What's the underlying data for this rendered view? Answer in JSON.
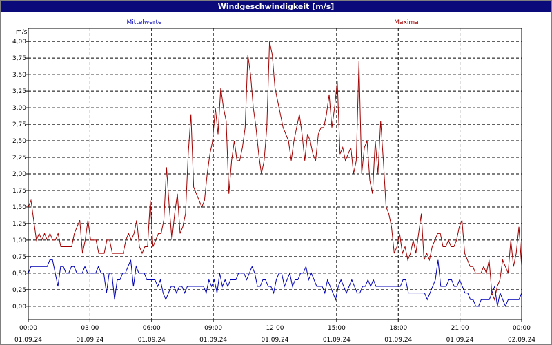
{
  "chart_data": {
    "type": "line",
    "title": "Windgeschwindigkeit [m/s]",
    "ylabel": "m/s",
    "ylim": [
      -0.2,
      4.2
    ],
    "yticks": [
      "4,00",
      "3,75",
      "3,50",
      "3,25",
      "3,00",
      "2,75",
      "2,50",
      "2,25",
      "2,00",
      "1,75",
      "1,50",
      "1,25",
      "1,00",
      "0,75",
      "0,50",
      "0,25",
      "0,00"
    ],
    "ytick_values": [
      4.0,
      3.75,
      3.5,
      3.25,
      3.0,
      2.75,
      2.5,
      2.25,
      2.0,
      1.75,
      1.5,
      1.25,
      1.0,
      0.75,
      0.5,
      0.25,
      0.0
    ],
    "xlim": [
      0,
      24
    ],
    "xticks": [
      {
        "time": "00:00",
        "date": "01.09.24"
      },
      {
        "time": "03:00",
        "date": "01.09.24"
      },
      {
        "time": "06:00",
        "date": "01.09.24"
      },
      {
        "time": "09:00",
        "date": "01.09.24"
      },
      {
        "time": "12:00",
        "date": "01.09.24"
      },
      {
        "time": "15:00",
        "date": "01.09.24"
      },
      {
        "time": "18:00",
        "date": "01.09.24"
      },
      {
        "time": "21:00",
        "date": "01.09.24"
      },
      {
        "time": "00:00",
        "date": "02.09.24"
      }
    ],
    "grid": true,
    "series": [
      {
        "name": "Mittelwerte",
        "color": "#0000b4",
        "values": [
          0.5,
          0.6,
          0.6,
          0.6,
          0.6,
          0.6,
          0.6,
          0.6,
          0.7,
          0.7,
          0.5,
          0.3,
          0.6,
          0.6,
          0.5,
          0.5,
          0.6,
          0.6,
          0.5,
          0.5,
          0.5,
          0.6,
          0.5,
          0.5,
          0.5,
          0.5,
          0.6,
          0.5,
          0.5,
          0.2,
          0.5,
          0.5,
          0.1,
          0.4,
          0.4,
          0.5,
          0.5,
          0.6,
          0.7,
          0.3,
          0.6,
          0.5,
          0.5,
          0.5,
          0.4,
          0.4,
          0.4,
          0.4,
          0.3,
          0.4,
          0.2,
          0.1,
          0.2,
          0.3,
          0.3,
          0.2,
          0.3,
          0.3,
          0.2,
          0.3,
          0.3,
          0.3,
          0.3,
          0.3,
          0.3,
          0.3,
          0.2,
          0.4,
          0.3,
          0.4,
          0.2,
          0.5,
          0.3,
          0.4,
          0.3,
          0.4,
          0.4,
          0.4,
          0.5,
          0.5,
          0.5,
          0.4,
          0.5,
          0.6,
          0.5,
          0.3,
          0.3,
          0.4,
          0.4,
          0.3,
          0.3,
          0.2,
          0.4,
          0.5,
          0.5,
          0.3,
          0.4,
          0.5,
          0.3,
          0.4,
          0.4,
          0.5,
          0.5,
          0.6,
          0.4,
          0.5,
          0.4,
          0.3,
          0.3,
          0.3,
          0.2,
          0.4,
          0.3,
          0.2,
          0.1,
          0.3,
          0.4,
          0.3,
          0.2,
          0.3,
          0.4,
          0.3,
          0.2,
          0.2,
          0.3,
          0.3,
          0.4,
          0.3,
          0.4,
          0.3,
          0.3,
          0.3,
          0.3,
          0.3,
          0.3,
          0.3,
          0.3,
          0.3,
          0.3,
          0.4,
          0.4,
          0.2,
          0.2,
          0.2,
          0.2,
          0.2,
          0.2,
          0.2,
          0.1,
          0.2,
          0.3,
          0.4,
          0.7,
          0.3,
          0.3,
          0.3,
          0.4,
          0.4,
          0.3,
          0.3,
          0.4,
          0.3,
          0.2,
          0.2,
          0.1,
          0.1,
          0.0,
          0.0,
          0.1,
          0.1,
          0.1,
          0.1,
          0.2,
          0.3,
          0.0,
          0.2,
          0.1,
          0.0,
          0.1,
          0.1,
          0.1,
          0.1,
          0.1,
          0.2
        ]
      },
      {
        "name": "Maxima",
        "color": "#a00000",
        "values": [
          1.5,
          1.6,
          1.3,
          1.0,
          1.1,
          1.0,
          1.1,
          1.0,
          1.1,
          1.0,
          1.0,
          1.1,
          0.9,
          0.9,
          0.9,
          0.9,
          0.9,
          1.1,
          1.2,
          1.3,
          0.8,
          1.0,
          1.3,
          1.0,
          1.0,
          1.0,
          0.8,
          0.8,
          0.8,
          1.0,
          1.0,
          0.8,
          0.8,
          0.8,
          0.8,
          0.8,
          1.0,
          1.1,
          1.0,
          1.1,
          1.3,
          0.9,
          0.8,
          0.9,
          0.9,
          1.6,
          0.9,
          1.0,
          1.1,
          1.1,
          1.3,
          2.1,
          1.5,
          1.0,
          1.4,
          1.7,
          1.1,
          1.2,
          1.4,
          2.3,
          2.9,
          1.8,
          1.7,
          1.6,
          1.5,
          1.6,
          2.0,
          2.3,
          2.5,
          3.0,
          2.6,
          3.3,
          3.0,
          2.8,
          1.7,
          2.2,
          2.5,
          2.2,
          2.2,
          2.4,
          2.7,
          3.8,
          3.5,
          3.0,
          2.7,
          2.3,
          2.0,
          2.2,
          2.7,
          4.0,
          3.8,
          3.3,
          3.1,
          2.9,
          2.7,
          2.6,
          2.5,
          2.2,
          2.5,
          2.7,
          2.9,
          2.6,
          2.2,
          2.6,
          2.5,
          2.3,
          2.2,
          2.6,
          2.7,
          2.7,
          2.9,
          3.2,
          2.7,
          3.0,
          3.4,
          2.3,
          2.4,
          2.2,
          2.3,
          2.4,
          2.0,
          2.2,
          3.7,
          2.0,
          2.4,
          2.5,
          1.9,
          1.7,
          2.5,
          2.0,
          2.8,
          2.2,
          1.5,
          1.4,
          1.2,
          0.8,
          0.9,
          1.1,
          0.8,
          0.9,
          0.7,
          0.8,
          1.0,
          0.8,
          1.1,
          1.4,
          0.7,
          0.8,
          0.7,
          0.9,
          1.0,
          1.1,
          1.1,
          0.9,
          0.9,
          1.0,
          0.9,
          0.9,
          1.0,
          1.2,
          1.3,
          0.8,
          0.7,
          0.6,
          0.6,
          0.5,
          0.5,
          0.5,
          0.6,
          0.5,
          0.7,
          0.2,
          0.1,
          0.3,
          0.4,
          0.7,
          0.6,
          0.5,
          1.0,
          0.6,
          0.8,
          1.2,
          0.6
        ]
      }
    ]
  }
}
